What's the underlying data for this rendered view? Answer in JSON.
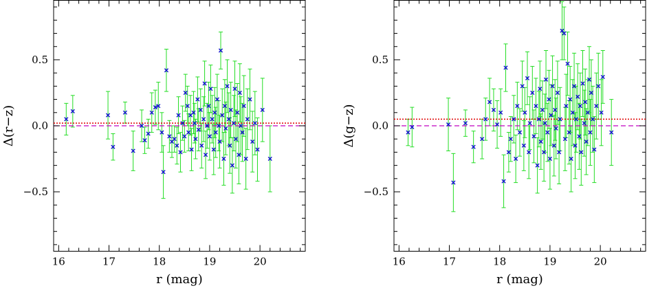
{
  "chart_data": [
    {
      "type": "scatter",
      "xlabel": "r (mag)",
      "ylabel": "Δ(r−z)",
      "xlim": [
        15.9,
        20.9
      ],
      "ylim": [
        -0.95,
        0.95
      ],
      "x_ticks": [
        16,
        17,
        18,
        19,
        20
      ],
      "x_tick_labels": [
        "16",
        "17",
        "18",
        "19",
        "20"
      ],
      "y_ticks": [
        -0.5,
        0.0,
        0.5
      ],
      "y_tick_labels": [
        "−0.5",
        "0.0",
        "0.5"
      ],
      "grid": false,
      "reference_lines": [
        {
          "style": "dotted",
          "color": "#e00000",
          "y": 0.02
        },
        {
          "style": "dashed",
          "color": "#c000c0",
          "y": 0.0
        }
      ],
      "series": [
        {
          "marker": "x",
          "color": "#1010d0",
          "errorbar_color": "#22dd22",
          "points": [
            [
              16.15,
              0.05,
              0.12
            ],
            [
              16.28,
              0.11,
              0.12
            ],
            [
              16.98,
              0.08,
              0.18
            ],
            [
              17.08,
              -0.16,
              0.1
            ],
            [
              17.32,
              0.1,
              0.08
            ],
            [
              17.48,
              -0.19,
              0.15
            ],
            [
              17.65,
              0.0,
              0.12
            ],
            [
              17.71,
              -0.11,
              0.1
            ],
            [
              17.78,
              -0.06,
              0.11
            ],
            [
              17.85,
              0.1,
              0.15
            ],
            [
              17.92,
              0.14,
              0.13
            ],
            [
              17.98,
              0.15,
              0.18
            ],
            [
              18.05,
              -0.05,
              0.15
            ],
            [
              18.08,
              -0.35,
              0.2
            ],
            [
              18.14,
              0.42,
              0.16
            ],
            [
              18.2,
              -0.08,
              0.12
            ],
            [
              18.25,
              -0.12,
              0.12
            ],
            [
              18.3,
              -0.1,
              0.1
            ],
            [
              18.35,
              -0.15,
              0.14
            ],
            [
              18.38,
              0.08,
              0.14
            ],
            [
              18.42,
              -0.2,
              0.15
            ],
            [
              18.46,
              0.02,
              0.13
            ],
            [
              18.5,
              -0.08,
              0.12
            ],
            [
              18.52,
              0.25,
              0.14
            ],
            [
              18.56,
              0.15,
              0.15
            ],
            [
              18.58,
              -0.05,
              0.14
            ],
            [
              18.62,
              0.08,
              0.15
            ],
            [
              18.64,
              -0.18,
              0.16
            ],
            [
              18.68,
              0.1,
              0.16
            ],
            [
              18.7,
              0.02,
              0.15
            ],
            [
              18.72,
              -0.1,
              0.15
            ],
            [
              18.76,
              0.2,
              0.17
            ],
            [
              18.78,
              -0.03,
              0.16
            ],
            [
              18.82,
              0.12,
              0.16
            ],
            [
              18.84,
              -0.15,
              0.17
            ],
            [
              18.88,
              0.05,
              0.17
            ],
            [
              18.9,
              0.32,
              0.17
            ],
            [
              18.92,
              -0.22,
              0.18
            ],
            [
              18.95,
              0.0,
              0.17
            ],
            [
              18.98,
              0.15,
              0.18
            ],
            [
              19.0,
              -0.08,
              0.18
            ],
            [
              19.02,
              0.28,
              0.18
            ],
            [
              19.05,
              0.05,
              0.18
            ],
            [
              19.08,
              -0.18,
              0.19
            ],
            [
              19.1,
              0.1,
              0.19
            ],
            [
              19.12,
              -0.05,
              0.19
            ],
            [
              19.15,
              0.2,
              0.19
            ],
            [
              19.18,
              0.0,
              0.19
            ],
            [
              19.2,
              -0.12,
              0.2
            ],
            [
              19.22,
              0.57,
              0.14
            ],
            [
              19.25,
              0.08,
              0.2
            ],
            [
              19.28,
              -0.25,
              0.2
            ],
            [
              19.3,
              0.15,
              0.2
            ],
            [
              19.32,
              -0.02,
              0.2
            ],
            [
              19.35,
              0.3,
              0.2
            ],
            [
              19.38,
              0.05,
              0.2
            ],
            [
              19.4,
              -0.15,
              0.21
            ],
            [
              19.42,
              0.12,
              0.21
            ],
            [
              19.45,
              -0.3,
              0.21
            ],
            [
              19.48,
              0.02,
              0.21
            ],
            [
              19.5,
              0.28,
              0.21
            ],
            [
              19.52,
              -0.1,
              0.22
            ],
            [
              19.55,
              0.1,
              0.22
            ],
            [
              19.58,
              -0.22,
              0.22
            ],
            [
              19.6,
              0.25,
              0.22
            ],
            [
              19.62,
              0.0,
              0.22
            ],
            [
              19.65,
              -0.05,
              0.22
            ],
            [
              19.68,
              0.15,
              0.23
            ],
            [
              19.72,
              -0.25,
              0.23
            ],
            [
              19.75,
              0.05,
              0.23
            ],
            [
              19.8,
              0.2,
              0.23
            ],
            [
              19.85,
              -0.12,
              0.23
            ],
            [
              19.9,
              0.02,
              0.24
            ],
            [
              19.95,
              -0.18,
              0.24
            ],
            [
              20.05,
              0.12,
              0.24
            ],
            [
              20.2,
              -0.25,
              0.25
            ]
          ]
        }
      ]
    },
    {
      "type": "scatter",
      "xlabel": "r (mag)",
      "ylabel": "Δ(g−z)",
      "xlim": [
        15.9,
        20.9
      ],
      "ylim": [
        -0.95,
        0.95
      ],
      "x_ticks": [
        16,
        17,
        18,
        19,
        20
      ],
      "x_tick_labels": [
        "16",
        "17",
        "18",
        "19",
        "20"
      ],
      "y_ticks": [
        -0.5,
        0.0,
        0.5
      ],
      "y_tick_labels": [
        "−0.5",
        "0.0",
        "0.5"
      ],
      "grid": false,
      "reference_lines": [
        {
          "style": "dotted",
          "color": "#e00000",
          "y": 0.05
        },
        {
          "style": "dashed",
          "color": "#c000c0",
          "y": 0.0
        }
      ],
      "series": [
        {
          "marker": "x",
          "color": "#1010d0",
          "errorbar_color": "#22dd22",
          "points": [
            [
              16.18,
              -0.05,
              0.1
            ],
            [
              16.26,
              -0.01,
              0.15
            ],
            [
              16.98,
              0.01,
              0.2
            ],
            [
              17.08,
              -0.43,
              0.22
            ],
            [
              17.32,
              0.02,
              0.1
            ],
            [
              17.48,
              -0.16,
              0.12
            ],
            [
              17.65,
              -0.1,
              0.15
            ],
            [
              17.72,
              0.05,
              0.16
            ],
            [
              17.8,
              0.18,
              0.18
            ],
            [
              17.88,
              0.12,
              0.16
            ],
            [
              17.95,
              0.01,
              0.18
            ],
            [
              18.02,
              0.1,
              0.18
            ],
            [
              18.08,
              -0.42,
              0.2
            ],
            [
              18.12,
              0.44,
              0.18
            ],
            [
              18.18,
              -0.2,
              0.15
            ],
            [
              18.22,
              -0.1,
              0.17
            ],
            [
              18.28,
              0.05,
              0.18
            ],
            [
              18.32,
              -0.25,
              0.18
            ],
            [
              18.35,
              0.15,
              0.18
            ],
            [
              18.4,
              -0.05,
              0.18
            ],
            [
              18.45,
              0.3,
              0.19
            ],
            [
              18.48,
              -0.15,
              0.19
            ],
            [
              18.5,
              0.1,
              0.19
            ],
            [
              18.55,
              0.36,
              0.2
            ],
            [
              18.58,
              -0.2,
              0.2
            ],
            [
              18.6,
              0.02,
              0.2
            ],
            [
              18.65,
              0.25,
              0.2
            ],
            [
              18.68,
              -0.08,
              0.2
            ],
            [
              18.72,
              0.15,
              0.21
            ],
            [
              18.75,
              -0.3,
              0.21
            ],
            [
              18.78,
              0.05,
              0.21
            ],
            [
              18.8,
              0.28,
              0.21
            ],
            [
              18.82,
              -0.12,
              0.21
            ],
            [
              18.85,
              0.12,
              0.22
            ],
            [
              18.88,
              -0.2,
              0.22
            ],
            [
              18.9,
              0.02,
              0.22
            ],
            [
              18.92,
              0.35,
              0.22
            ],
            [
              18.95,
              -0.05,
              0.22
            ],
            [
              18.98,
              0.2,
              0.22
            ],
            [
              19.0,
              -0.25,
              0.23
            ],
            [
              19.02,
              0.08,
              0.23
            ],
            [
              19.05,
              0.3,
              0.23
            ],
            [
              19.08,
              -0.15,
              0.23
            ],
            [
              19.1,
              0.12,
              0.23
            ],
            [
              19.12,
              -0.02,
              0.23
            ],
            [
              19.15,
              0.25,
              0.24
            ],
            [
              19.18,
              -0.2,
              0.24
            ],
            [
              19.2,
              0.05,
              0.24
            ],
            [
              19.24,
              0.72,
              0.22
            ],
            [
              19.28,
              0.7,
              0.2
            ],
            [
              19.3,
              -0.1,
              0.24
            ],
            [
              19.32,
              0.15,
              0.24
            ],
            [
              19.35,
              0.47,
              0.24
            ],
            [
              19.38,
              -0.05,
              0.24
            ],
            [
              19.4,
              0.2,
              0.25
            ],
            [
              19.42,
              -0.25,
              0.25
            ],
            [
              19.45,
              0.1,
              0.25
            ],
            [
              19.48,
              0.3,
              0.25
            ],
            [
              19.5,
              -0.15,
              0.25
            ],
            [
              19.52,
              0.05,
              0.25
            ],
            [
              19.55,
              0.22,
              0.25
            ],
            [
              19.58,
              -0.08,
              0.25
            ],
            [
              19.6,
              0.15,
              0.25
            ],
            [
              19.62,
              -0.2,
              0.25
            ],
            [
              19.65,
              0.32,
              0.25
            ],
            [
              19.68,
              0.02,
              0.25
            ],
            [
              19.7,
              0.18,
              0.25
            ],
            [
              19.72,
              -0.12,
              0.25
            ],
            [
              19.75,
              0.1,
              0.25
            ],
            [
              19.78,
              0.35,
              0.25
            ],
            [
              19.8,
              -0.05,
              0.25
            ],
            [
              19.82,
              0.25,
              0.25
            ],
            [
              19.85,
              0.05,
              0.25
            ],
            [
              19.88,
              -0.18,
              0.25
            ],
            [
              19.92,
              0.15,
              0.25
            ],
            [
              19.96,
              0.3,
              0.25
            ],
            [
              20.02,
              0.1,
              0.25
            ],
            [
              20.05,
              0.37,
              0.2
            ],
            [
              20.22,
              -0.05,
              0.25
            ]
          ]
        }
      ]
    }
  ]
}
